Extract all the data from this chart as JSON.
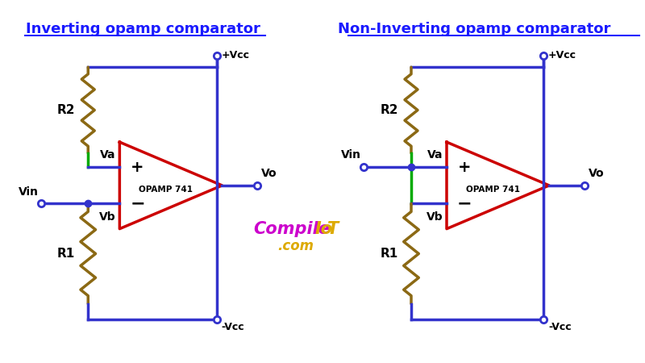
{
  "bg_color": "#ffffff",
  "wire_color": "#3333cc",
  "resistor_color": "#8B6914",
  "opamp_color": "#cc0000",
  "green_color": "#00aa00",
  "title1": "Inverting opamp comparator",
  "title2": "Non-Inverting opamp comparator",
  "title_color": "#1a1aff",
  "logo_compile_color": "#cc00cc",
  "logo_iot_color": "#ddaa00",
  "logo_com_color": "#ddaa00",
  "opamp_label": "OPAMP 741",
  "wire_lw": 2.5,
  "resistor_lw": 2.5,
  "opamp_lw": 2.5,
  "dot_size": 6,
  "title_fontsize": 13,
  "label_fontsize": 10,
  "r_label_fontsize": 11
}
